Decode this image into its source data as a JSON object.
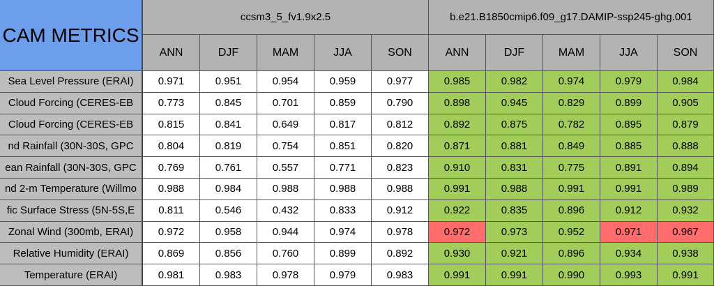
{
  "title": "CAM METRICS",
  "cases": [
    "ccsm3_5_fv1.9x2.5",
    "b.e21.B1850cmip6.f09_g17.DAMIP-ssp245-ghg.001"
  ],
  "seasons": [
    "ANN",
    "DJF",
    "MAM",
    "JJA",
    "SON"
  ],
  "colors": {
    "title_bg": "#6d9eeb",
    "header_bg": "#b3b3b3",
    "better": "#a3cd5b",
    "worse": "#ff6c6b",
    "neutral": "#ffffff"
  },
  "rows": [
    {
      "label": "Sea Level Pressure (ERAI)",
      "base": [
        "0.971",
        "0.951",
        "0.954",
        "0.959",
        "0.977"
      ],
      "test": [
        "0.985",
        "0.982",
        "0.974",
        "0.979",
        "0.984"
      ],
      "status": [
        "good",
        "good",
        "good",
        "good",
        "good"
      ]
    },
    {
      "label": "Cloud Forcing (CERES-EB",
      "base": [
        "0.773",
        "0.845",
        "0.701",
        "0.859",
        "0.790"
      ],
      "test": [
        "0.898",
        "0.945",
        "0.829",
        "0.899",
        "0.905"
      ],
      "status": [
        "good",
        "good",
        "good",
        "good",
        "good"
      ]
    },
    {
      "label": "Cloud Forcing (CERES-EB",
      "base": [
        "0.815",
        "0.841",
        "0.649",
        "0.817",
        "0.812"
      ],
      "test": [
        "0.892",
        "0.875",
        "0.782",
        "0.895",
        "0.879"
      ],
      "status": [
        "good",
        "good",
        "good",
        "good",
        "good"
      ]
    },
    {
      "label": "nd Rainfall (30N-30S, GPC",
      "base": [
        "0.804",
        "0.819",
        "0.754",
        "0.851",
        "0.820"
      ],
      "test": [
        "0.871",
        "0.881",
        "0.849",
        "0.885",
        "0.888"
      ],
      "status": [
        "good",
        "good",
        "good",
        "good",
        "good"
      ]
    },
    {
      "label": "ean Rainfall (30N-30S, GPC",
      "base": [
        "0.769",
        "0.761",
        "0.557",
        "0.771",
        "0.823"
      ],
      "test": [
        "0.910",
        "0.831",
        "0.775",
        "0.891",
        "0.894"
      ],
      "status": [
        "good",
        "good",
        "good",
        "good",
        "good"
      ]
    },
    {
      "label": "nd 2-m Temperature (Willmo",
      "base": [
        "0.988",
        "0.984",
        "0.988",
        "0.988",
        "0.988"
      ],
      "test": [
        "0.991",
        "0.988",
        "0.991",
        "0.991",
        "0.989"
      ],
      "status": [
        "good",
        "good",
        "good",
        "good",
        "good"
      ]
    },
    {
      "label": "fic Surface Stress (5N-5S,E",
      "base": [
        "0.811",
        "0.546",
        "0.432",
        "0.833",
        "0.912"
      ],
      "test": [
        "0.922",
        "0.835",
        "0.896",
        "0.912",
        "0.932"
      ],
      "status": [
        "good",
        "good",
        "good",
        "good",
        "good"
      ]
    },
    {
      "label": "Zonal Wind (300mb, ERAI)",
      "base": [
        "0.972",
        "0.958",
        "0.944",
        "0.974",
        "0.978"
      ],
      "test": [
        "0.972",
        "0.973",
        "0.952",
        "0.971",
        "0.967"
      ],
      "status": [
        "bad",
        "good",
        "good",
        "bad",
        "bad"
      ]
    },
    {
      "label": "Relative Humidity (ERAI)",
      "base": [
        "0.869",
        "0.856",
        "0.760",
        "0.899",
        "0.892"
      ],
      "test": [
        "0.930",
        "0.921",
        "0.896",
        "0.934",
        "0.938"
      ],
      "status": [
        "good",
        "good",
        "good",
        "good",
        "good"
      ]
    },
    {
      "label": "Temperature (ERAI)",
      "base": [
        "0.981",
        "0.983",
        "0.978",
        "0.979",
        "0.983"
      ],
      "test": [
        "0.991",
        "0.991",
        "0.990",
        "0.993",
        "0.991"
      ],
      "status": [
        "good",
        "good",
        "good",
        "good",
        "good"
      ]
    }
  ]
}
